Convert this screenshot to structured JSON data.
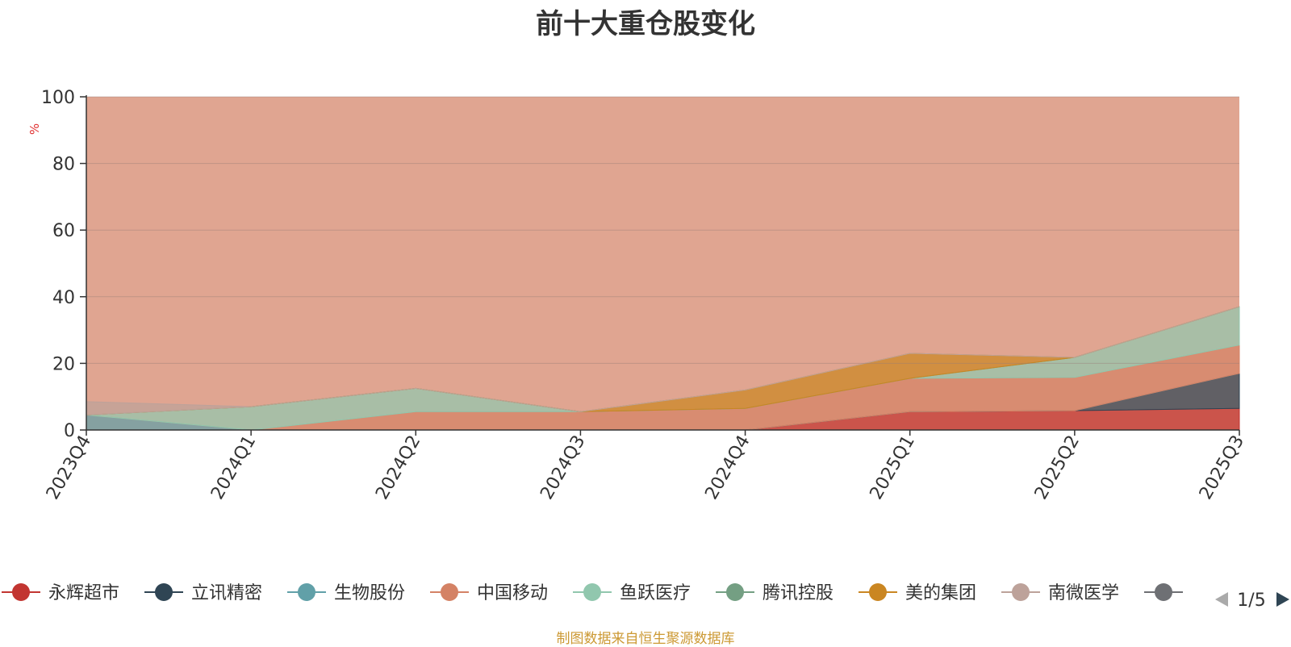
{
  "chart_data": {
    "type": "area",
    "stacked": true,
    "title": "前十大重仓股变化",
    "ylabel": "%",
    "ylim": [
      0,
      100
    ],
    "yticks": [
      0,
      20,
      40,
      60,
      80,
      100
    ],
    "grid": true,
    "categories": [
      "2023Q4",
      "2024Q1",
      "2024Q2",
      "2024Q3",
      "2024Q4",
      "2025Q1",
      "2025Q2",
      "2025Q3"
    ],
    "legend_position": "bottom",
    "legend_page": "1/5",
    "series": [
      {
        "name": "永辉超市",
        "color": "#c23531",
        "values": [
          0,
          0,
          0,
          0,
          0,
          5.5,
          5.8,
          6.5
        ]
      },
      {
        "name": "立讯精密",
        "color": "#2f4554",
        "values": [
          0,
          0,
          0,
          0,
          0,
          0,
          0,
          10.5
        ]
      },
      {
        "name": "生物股份",
        "color": "#61a0a8",
        "values": [
          4.5,
          0,
          0,
          0,
          0,
          0,
          0,
          0
        ]
      },
      {
        "name": "中国移动",
        "color": "#d48265",
        "values": [
          0,
          0,
          5.5,
          5.5,
          6.5,
          10,
          10,
          8.5
        ]
      },
      {
        "name": "鱼跃医疗",
        "color": "#91c7ae",
        "values": [
          0,
          7,
          7,
          0,
          0,
          0,
          6,
          11.5
        ]
      },
      {
        "name": "腾讯控股",
        "color": "#749f83",
        "values": [
          0,
          0,
          0,
          0,
          0,
          0,
          0,
          0
        ]
      },
      {
        "name": "美的集团",
        "color": "#ca8622",
        "values": [
          0,
          0,
          0,
          0,
          5.5,
          7.5,
          0,
          0
        ]
      },
      {
        "name": "南微医学",
        "color": "#bda29a",
        "values": [
          4,
          0,
          0,
          0,
          0,
          0,
          0,
          0
        ]
      }
    ],
    "truncated_legend_item_color": "#6e7074"
  },
  "source_note": "制图数据来自恒生聚源数据库"
}
